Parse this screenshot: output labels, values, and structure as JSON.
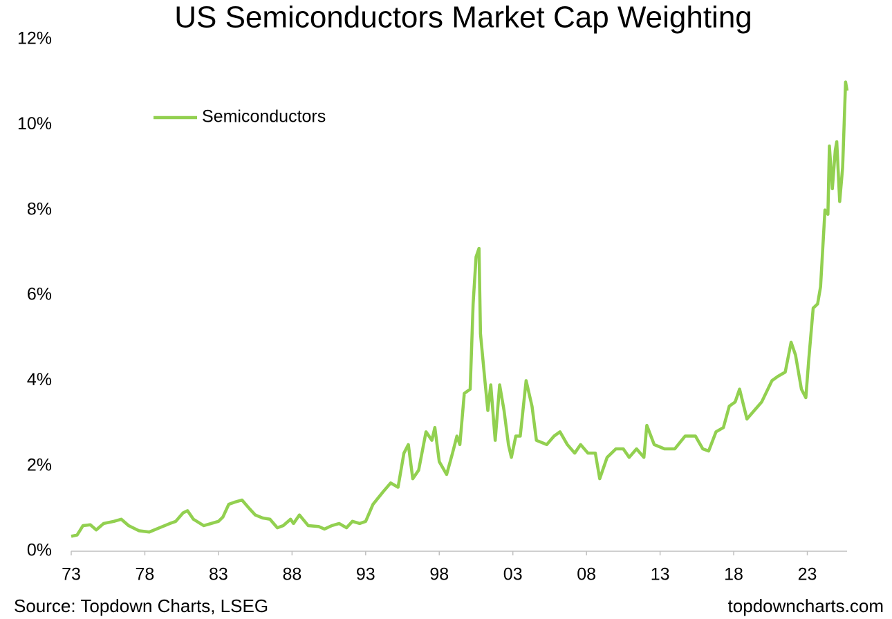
{
  "chart_data": {
    "type": "line",
    "title": "US Semiconductors Market Cap Weighting",
    "source": "Source: Topdown Charts, LSEG",
    "watermark": "topdowncharts.com",
    "legend": "top-left",
    "grid": false,
    "xlim": [
      1973,
      2025.7
    ],
    "ylim": [
      0,
      12
    ],
    "xticks": [
      {
        "value": 1973,
        "label": "73"
      },
      {
        "value": 1978,
        "label": "78"
      },
      {
        "value": 1983,
        "label": "83"
      },
      {
        "value": 1988,
        "label": "88"
      },
      {
        "value": 1993,
        "label": "93"
      },
      {
        "value": 1998,
        "label": "98"
      },
      {
        "value": 2003,
        "label": "03"
      },
      {
        "value": 2008,
        "label": "08"
      },
      {
        "value": 2013,
        "label": "13"
      },
      {
        "value": 2018,
        "label": "18"
      },
      {
        "value": 2023,
        "label": "23"
      }
    ],
    "yticks": [
      {
        "value": 0,
        "label": "0%"
      },
      {
        "value": 2,
        "label": "2%"
      },
      {
        "value": 4,
        "label": "4%"
      },
      {
        "value": 6,
        "label": "6%"
      },
      {
        "value": 8,
        "label": "8%"
      },
      {
        "value": 10,
        "label": "10%"
      },
      {
        "value": 12,
        "label": "12%"
      }
    ],
    "x": [
      1973.0,
      1973.4,
      1973.8,
      1974.3,
      1974.7,
      1975.2,
      1975.9,
      1976.4,
      1976.9,
      1977.6,
      1978.3,
      1979.0,
      1979.7,
      1980.1,
      1980.6,
      1980.9,
      1981.3,
      1982.0,
      1982.5,
      1983.0,
      1983.3,
      1983.7,
      1984.1,
      1984.6,
      1985.1,
      1985.5,
      1986.0,
      1986.5,
      1987.0,
      1987.4,
      1987.9,
      1988.1,
      1988.5,
      1989.1,
      1989.8,
      1990.2,
      1990.7,
      1991.2,
      1991.7,
      1992.1,
      1992.6,
      1993.0,
      1993.5,
      1994.2,
      1994.7,
      1995.2,
      1995.6,
      1995.9,
      1996.2,
      1996.6,
      1997.1,
      1997.5,
      1997.7,
      1998.0,
      1998.5,
      1998.9,
      1999.2,
      1999.4,
      1999.7,
      2000.1,
      2000.3,
      2000.5,
      2000.7,
      2000.8,
      2001.1,
      2001.3,
      2001.5,
      2001.8,
      2002.1,
      2002.4,
      2002.7,
      2002.9,
      2003.2,
      2003.5,
      2003.9,
      2004.3,
      2004.6,
      2005.3,
      2005.8,
      2006.2,
      2006.7,
      2007.2,
      2007.6,
      2008.1,
      2008.6,
      2008.9,
      2009.4,
      2010.0,
      2010.5,
      2010.9,
      2011.4,
      2011.9,
      2012.1,
      2012.6,
      2013.3,
      2014.0,
      2014.7,
      2015.4,
      2015.9,
      2016.3,
      2016.8,
      2017.3,
      2017.7,
      2018.1,
      2018.4,
      2018.9,
      2019.4,
      2019.9,
      2020.6,
      2021.0,
      2021.5,
      2021.9,
      2022.2,
      2022.6,
      2022.9,
      2023.1,
      2023.4,
      2023.7,
      2023.9,
      2024.2,
      2024.4,
      2024.5,
      2024.7,
      2024.9,
      2025.0,
      2025.2,
      2025.4,
      2025.6,
      2025.7
    ],
    "series": [
      {
        "name": "Semiconductors",
        "color": "#92d050",
        "values": [
          0.35,
          0.38,
          0.6,
          0.62,
          0.5,
          0.65,
          0.7,
          0.75,
          0.6,
          0.48,
          0.45,
          0.55,
          0.65,
          0.7,
          0.9,
          0.95,
          0.75,
          0.6,
          0.65,
          0.7,
          0.8,
          1.1,
          1.15,
          1.2,
          1.0,
          0.85,
          0.78,
          0.75,
          0.55,
          0.6,
          0.75,
          0.65,
          0.85,
          0.6,
          0.58,
          0.52,
          0.6,
          0.65,
          0.55,
          0.7,
          0.65,
          0.7,
          1.1,
          1.4,
          1.6,
          1.5,
          2.3,
          2.5,
          1.7,
          1.9,
          2.8,
          2.6,
          2.9,
          2.1,
          1.8,
          2.3,
          2.7,
          2.5,
          3.7,
          3.8,
          5.8,
          6.9,
          7.1,
          5.1,
          4.0,
          3.3,
          3.9,
          2.6,
          3.9,
          3.3,
          2.5,
          2.2,
          2.7,
          2.7,
          4.0,
          3.4,
          2.6,
          2.5,
          2.7,
          2.8,
          2.5,
          2.3,
          2.5,
          2.3,
          2.3,
          1.7,
          2.2,
          2.4,
          2.4,
          2.2,
          2.4,
          2.2,
          2.95,
          2.5,
          2.4,
          2.4,
          2.7,
          2.7,
          2.4,
          2.35,
          2.8,
          2.9,
          3.4,
          3.5,
          3.8,
          3.1,
          3.3,
          3.5,
          4.0,
          4.1,
          4.2,
          4.9,
          4.6,
          3.8,
          3.6,
          4.5,
          5.7,
          5.8,
          6.2,
          8.0,
          7.9,
          9.5,
          8.5,
          9.4,
          9.6,
          8.2,
          9.0,
          11.0,
          10.8
        ]
      }
    ]
  }
}
